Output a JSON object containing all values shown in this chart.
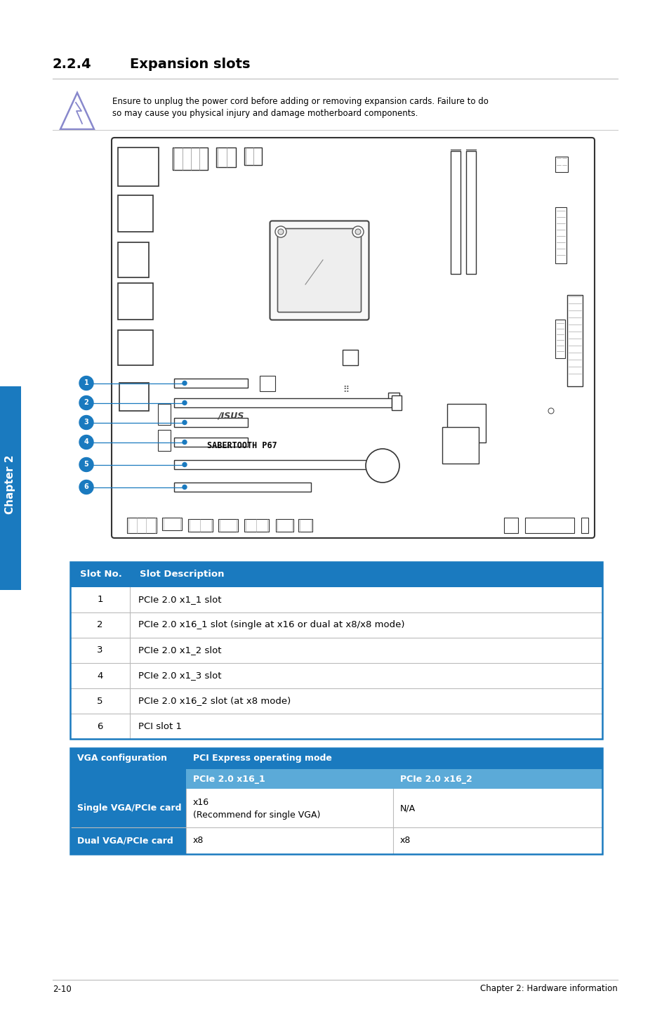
{
  "page_bg": "#ffffff",
  "title_number": "2.2.4",
  "title_text": "Expansion slots",
  "warning_text_line1": "Ensure to unplug the power cord before adding or removing expansion cards. Failure to do",
  "warning_text_line2": "so may cause you physical injury and damage motherboard components.",
  "table1_header_bg": "#1a7abf",
  "table1_col1_header": "Slot No.",
  "table1_col2_header": "Slot Description",
  "table1_rows": [
    [
      "1",
      "PCIe 2.0 x1_1 slot"
    ],
    [
      "2",
      "PCIe 2.0 x16_1 slot (single at x16 or dual at x8/x8 mode)"
    ],
    [
      "3",
      "PCIe 2.0 x1_2 slot"
    ],
    [
      "4",
      "PCIe 2.0 x1_3 slot"
    ],
    [
      "5",
      "PCIe 2.0 x16_2 slot (at x8 mode)"
    ],
    [
      "6",
      "PCI slot 1"
    ]
  ],
  "table1_border_color": "#bbbbbb",
  "table2_header_bg": "#1a7abf",
  "table2_subheader_bg": "#5baad8",
  "table2_col1_header": "VGA configuration",
  "table2_col2_header": "PCI Express operating mode",
  "table2_sub_col2": "PCIe 2.0 x16_1",
  "table2_sub_col3": "PCIe 2.0 x16_2",
  "table2_row1_col1": "Single VGA/PCIe card",
  "table2_row1_col2": "x16\n(Recommend for single VGA)",
  "table2_row1_col3": "N/A",
  "table2_row2_col1": "Dual VGA/PCIe card",
  "table2_row2_col2": "x8",
  "table2_row2_col3": "x8",
  "footer_left": "2-10",
  "footer_right": "Chapter 2: Hardware information",
  "sidebar_text": "Chapter 2",
  "sidebar_bg": "#1a7abf",
  "bullet_color": "#1a7abf",
  "bullet_numbers": [
    "1",
    "2",
    "3",
    "4",
    "5",
    "6"
  ]
}
